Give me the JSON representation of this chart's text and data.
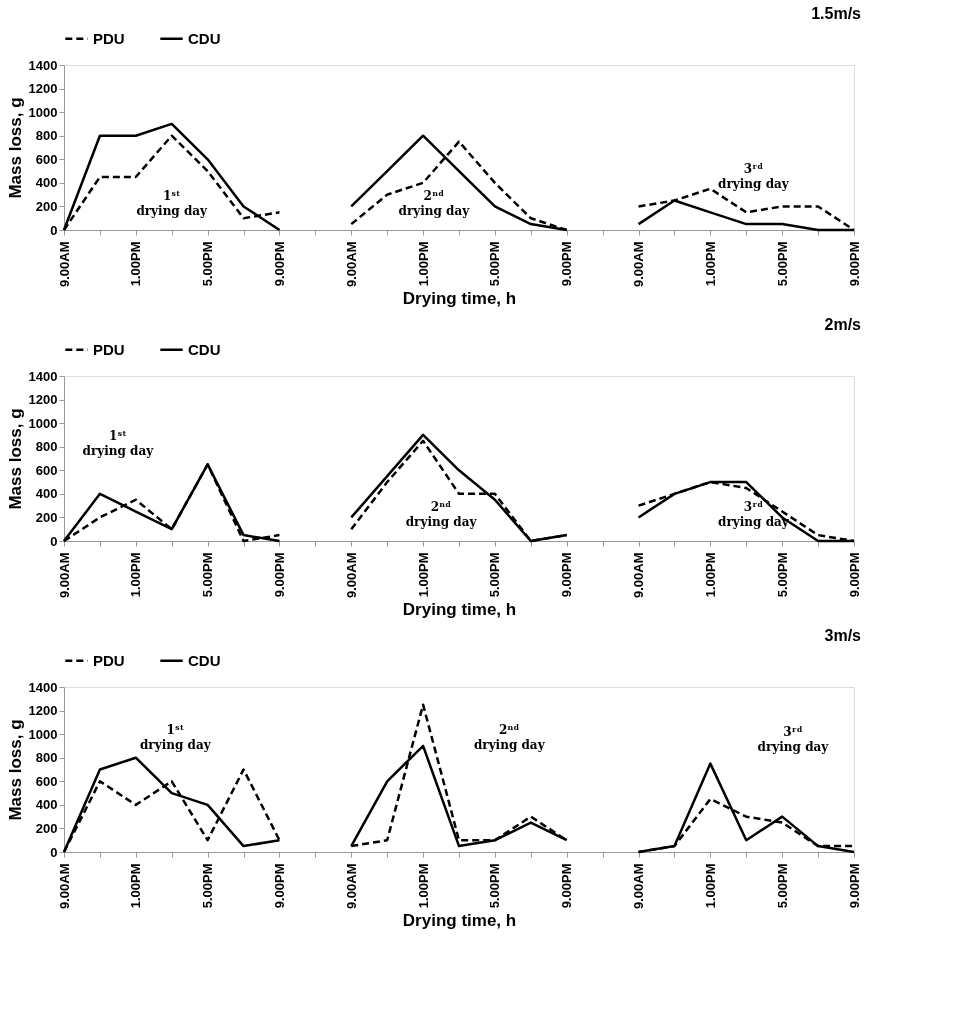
{
  "chart_data": [
    {
      "type": "line",
      "title": "1.5m/s",
      "xlabel": "Drying time, h",
      "ylabel": "Mass loss, g",
      "legend": "top",
      "categories": [
        "9.00AM",
        null,
        "1.00PM",
        null,
        "5.00PM",
        null,
        "9.00PM",
        null,
        "9.00AM",
        null,
        "1.00PM",
        null,
        "5.00PM",
        null,
        "9.00PM",
        null,
        "9.00AM",
        null,
        "1.00PM",
        null,
        "5.00PM",
        null,
        "9.00PM"
      ],
      "series": [
        {
          "name": "PDU",
          "color": "#000000",
          "line_style": "dashed",
          "values": [
            0,
            450,
            450,
            800,
            500,
            100,
            150,
            null,
            50,
            300,
            400,
            750,
            400,
            100,
            0,
            null,
            200,
            250,
            350,
            150,
            200,
            200,
            0
          ]
        },
        {
          "name": "CDU",
          "color": "#000000",
          "line_style": "solid",
          "values": [
            0,
            800,
            800,
            900,
            600,
            200,
            0,
            null,
            200,
            500,
            800,
            500,
            200,
            50,
            0,
            null,
            50,
            250,
            150,
            50,
            50,
            0,
            0
          ]
        }
      ],
      "ylim": [
        0,
        1400
      ],
      "yticks": [
        0,
        200,
        400,
        600,
        800,
        1000,
        1200,
        1400
      ],
      "grid": false,
      "annotations": [
        "1ˢᵗ drying day",
        "2ⁿᵈ drying day",
        "3ʳᵈ drying day"
      ]
    },
    {
      "type": "line",
      "title": "2m/s",
      "xlabel": "Drying time, h",
      "ylabel": "Mass loss, g",
      "legend": "top",
      "categories": [
        "9.00AM",
        null,
        "1.00PM",
        null,
        "5.00PM",
        null,
        "9.00PM",
        null,
        "9.00AM",
        null,
        "1.00PM",
        null,
        "5.00PM",
        null,
        "9.00PM",
        null,
        "9.00AM",
        null,
        "1.00PM",
        null,
        "5.00PM",
        null,
        "9.00PM"
      ],
      "series": [
        {
          "name": "PDU",
          "color": "#000000",
          "line_style": "dashed",
          "values": [
            0,
            200,
            350,
            100,
            650,
            0,
            50,
            null,
            100,
            500,
            850,
            400,
            400,
            0,
            50,
            null,
            300,
            400,
            500,
            450,
            250,
            50,
            0
          ]
        },
        {
          "name": "CDU",
          "color": "#000000",
          "line_style": "solid",
          "values": [
            0,
            400,
            250,
            100,
            650,
            50,
            0,
            null,
            200,
            550,
            900,
            600,
            350,
            0,
            50,
            null,
            200,
            400,
            500,
            500,
            200,
            0,
            0
          ]
        }
      ],
      "ylim": [
        0,
        1400
      ],
      "yticks": [
        0,
        200,
        400,
        600,
        800,
        1000,
        1200,
        1400
      ],
      "grid": false,
      "annotations": [
        "1ˢᵗ drying day",
        "2ⁿᵈ drying day",
        "3ʳᵈ drying day"
      ]
    },
    {
      "type": "line",
      "title": "3m/s",
      "xlabel": "Drying time, h",
      "ylabel": "Mass loss, g",
      "legend": "top",
      "categories": [
        "9.00AM",
        null,
        "1.00PM",
        null,
        "5.00PM",
        null,
        "9.00PM",
        null,
        "9.00AM",
        null,
        "1.00PM",
        null,
        "5.00PM",
        null,
        "9.00PM",
        null,
        "9.00AM",
        null,
        "1.00PM",
        null,
        "5.00PM",
        null,
        "9.00PM"
      ],
      "series": [
        {
          "name": "PDU",
          "color": "#000000",
          "line_style": "dashed",
          "values": [
            0,
            600,
            400,
            600,
            100,
            700,
            100,
            null,
            50,
            100,
            1250,
            100,
            100,
            300,
            100,
            null,
            0,
            50,
            450,
            300,
            250,
            50,
            50
          ]
        },
        {
          "name": "CDU",
          "color": "#000000",
          "line_style": "solid",
          "values": [
            0,
            700,
            800,
            500,
            400,
            50,
            100,
            null,
            50,
            600,
            900,
            50,
            100,
            250,
            100,
            null,
            0,
            50,
            750,
            100,
            300,
            50,
            0
          ]
        }
      ],
      "ylim": [
        0,
        1400
      ],
      "yticks": [
        0,
        200,
        400,
        600,
        800,
        1000,
        1200,
        1400
      ],
      "grid": false,
      "annotations": [
        "1ˢᵗ drying day",
        "2ⁿᵈ drying day",
        "3ʳᵈ drying day"
      ]
    }
  ]
}
